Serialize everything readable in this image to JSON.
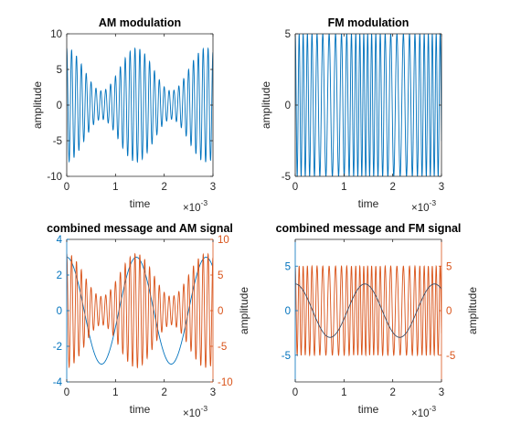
{
  "colors": {
    "blue": "#0072BD",
    "orange": "#D95319",
    "axis": "#262626",
    "message_dark": "#3c4b63"
  },
  "x_exponent": {
    "base": "×10",
    "power": "-3"
  },
  "chart_data": [
    {
      "type": "line",
      "title": "AM modulation",
      "xlabel": "time",
      "ylabel": "amplitude",
      "xlim": [
        0,
        0.003
      ],
      "ylim": [
        -10,
        10
      ],
      "xticks": [
        0,
        1,
        2,
        3
      ],
      "yticks": [
        -10,
        -5,
        0,
        5,
        10
      ],
      "grid": false,
      "series": [
        {
          "kind": "am",
          "color": "#0072BD",
          "carrier_hz": 10000,
          "message_hz": 700,
          "carrier_amplitude": 5,
          "modulation_index": 0.6,
          "x_start": 0,
          "x_end": 0.003
        }
      ]
    },
    {
      "type": "line",
      "title": "FM modulation",
      "xlabel": "time",
      "ylabel": "amplitude",
      "xlim": [
        0,
        0.003
      ],
      "ylim": [
        -5,
        5
      ],
      "xticks": [
        0,
        1,
        2,
        3
      ],
      "yticks": [
        -5,
        0,
        5
      ],
      "grid": false,
      "series": [
        {
          "kind": "fm",
          "color": "#0072BD",
          "carrier_hz": 10000,
          "message_hz": 700,
          "amplitude": 5,
          "freq_deviation_hz": 2500,
          "x_start": 0,
          "x_end": 0.003
        }
      ]
    },
    {
      "type": "line",
      "title": "combined message and AM signal",
      "xlabel": "time",
      "ylabel": "",
      "y2label": "amplitude",
      "xlim": [
        0,
        0.003
      ],
      "ylim": [
        -4,
        4
      ],
      "y2lim": [
        -10,
        10
      ],
      "xticks": [
        0,
        1,
        2,
        3
      ],
      "yticks": [
        -4,
        -2,
        0,
        2,
        4
      ],
      "y2ticks": [
        -10,
        -5,
        0,
        5,
        10
      ],
      "left_axis_color": "#0072BD",
      "right_axis_color": "#D95319",
      "grid": false,
      "series": [
        {
          "kind": "message",
          "axis": "left",
          "color": "#0072BD",
          "amplitude": 3,
          "message_hz": 700,
          "x_start": 0,
          "x_end": 0.003
        },
        {
          "kind": "am",
          "axis": "right",
          "color": "#D95319",
          "carrier_hz": 10000,
          "message_hz": 700,
          "carrier_amplitude": 5,
          "modulation_index": 0.6,
          "x_start": 0,
          "x_end": 0.003
        }
      ]
    },
    {
      "type": "line",
      "title": "combined message and FM signal",
      "xlabel": "time",
      "ylabel": "",
      "y2label": "amplitude",
      "xlim": [
        0,
        0.003
      ],
      "ylim": [
        -8,
        8
      ],
      "y2lim": [
        -8,
        8
      ],
      "xticks": [
        0,
        1,
        2,
        3
      ],
      "yticks": [
        -5,
        0,
        5
      ],
      "y2ticks": [
        -5,
        0,
        5
      ],
      "left_axis_color": "#0072BD",
      "right_axis_color": "#D95319",
      "grid": false,
      "series": [
        {
          "kind": "fm",
          "axis": "right",
          "color": "#D95319",
          "carrier_hz": 10000,
          "message_hz": 700,
          "amplitude": 5,
          "freq_deviation_hz": 2500,
          "x_start": 0,
          "x_end": 0.003
        },
        {
          "kind": "message",
          "axis": "left",
          "color": "#3c4b63",
          "amplitude": 3,
          "message_hz": 700,
          "x_start": 0,
          "x_end": 0.003
        }
      ]
    }
  ]
}
